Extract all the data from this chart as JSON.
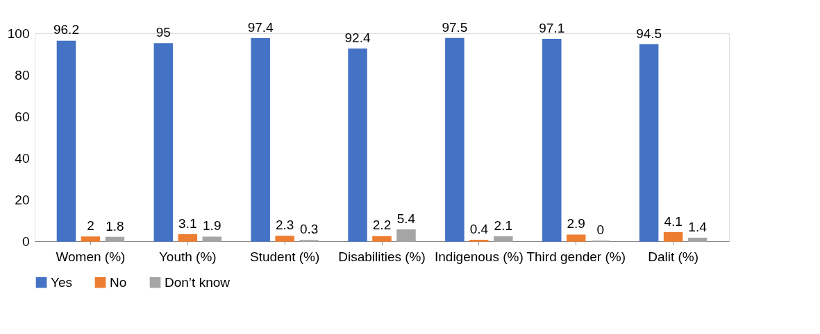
{
  "chart_data": {
    "type": "bar",
    "categories": [
      "Women (%)",
      "Youth (%)",
      "Student (%)",
      "Disabilities (%)",
      "Indigenous (%)",
      "Third gender (%)",
      "Dalit (%)"
    ],
    "series": [
      {
        "name": "Yes",
        "color": "#4472c4",
        "values": [
          96.2,
          95,
          97.4,
          92.4,
          97.5,
          97.1,
          94.5
        ]
      },
      {
        "name": "No",
        "color": "#ed7d31",
        "values": [
          2,
          3.1,
          2.3,
          2.2,
          0.4,
          2.9,
          4.1
        ]
      },
      {
        "name": "Don’t know",
        "color": "#a5a5a5",
        "values": [
          1.8,
          1.9,
          0.3,
          5.4,
          2.1,
          0,
          1.4
        ]
      }
    ],
    "ylim": [
      0,
      100
    ],
    "yticks": [
      0,
      20,
      40,
      60,
      80,
      100
    ],
    "grid": false,
    "legend": "bottom",
    "data_labels": true
  }
}
